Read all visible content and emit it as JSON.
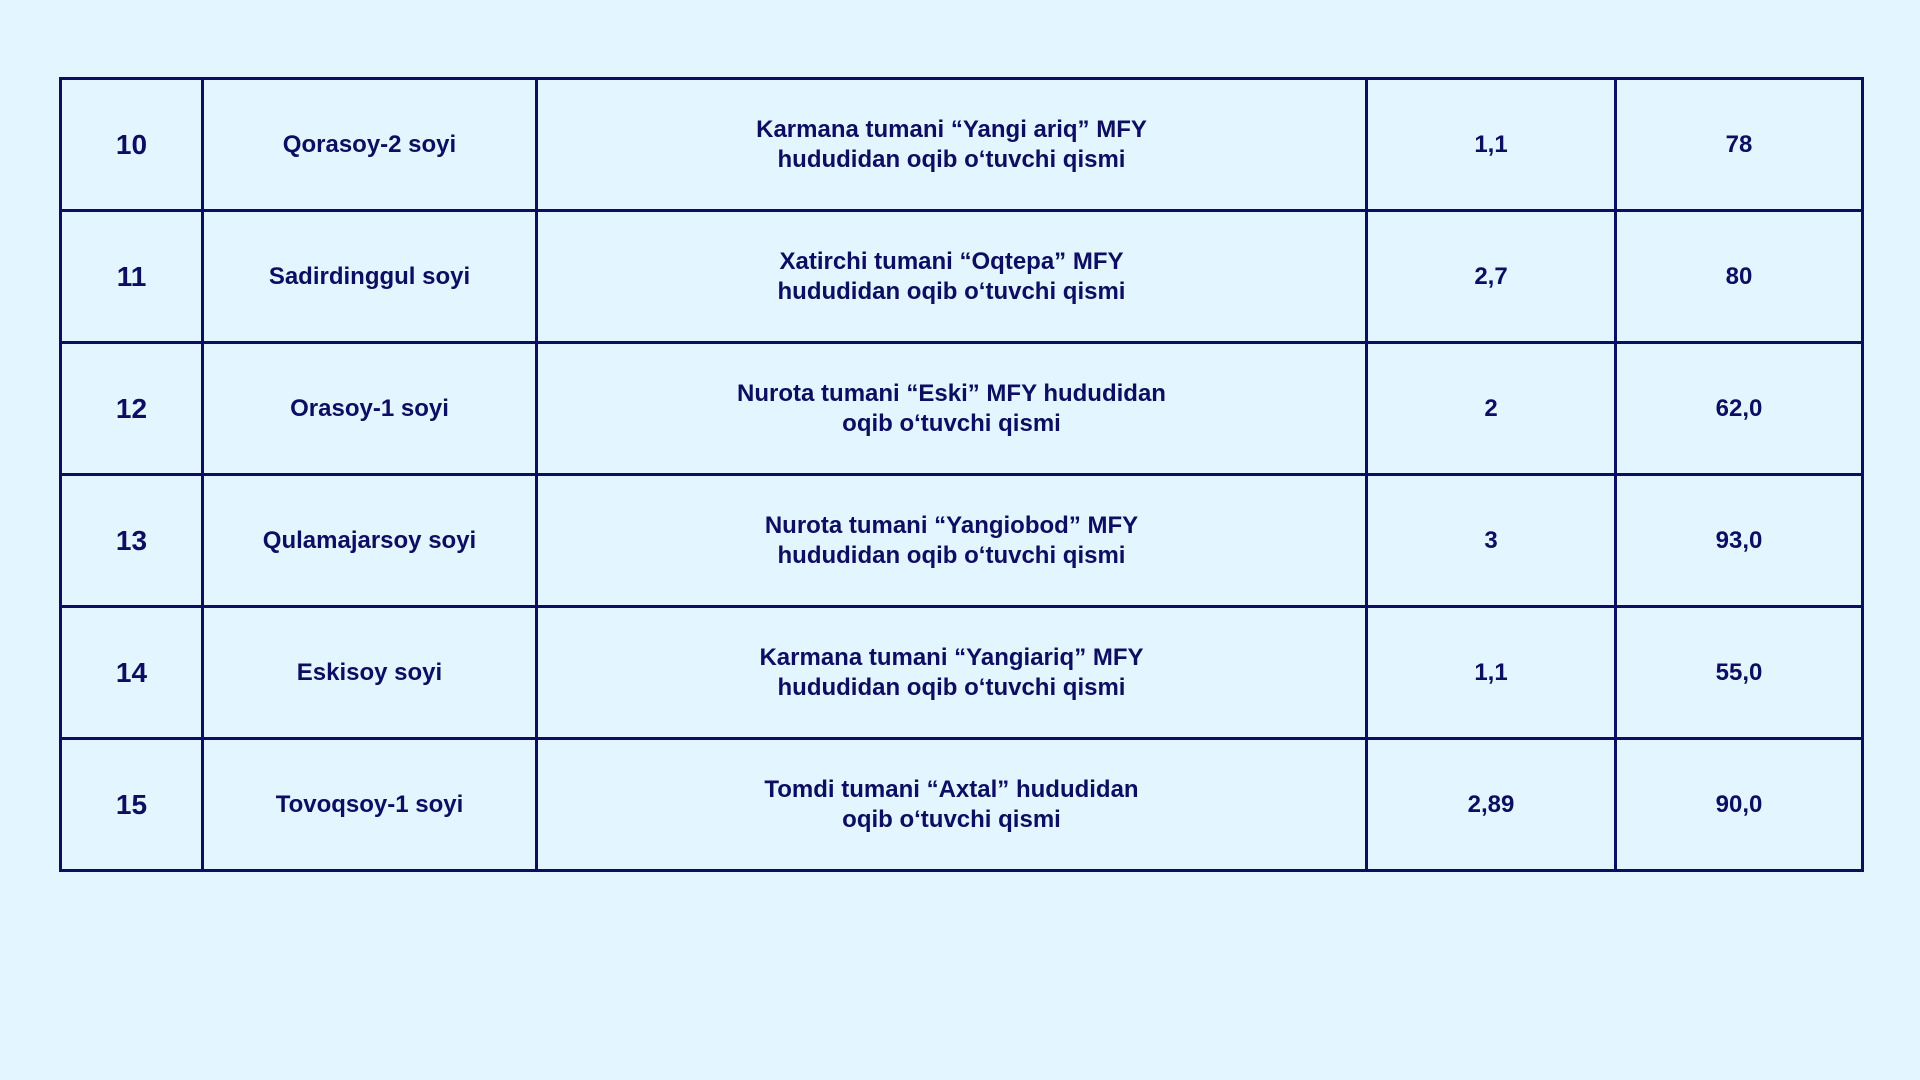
{
  "rows": [
    {
      "no": "10",
      "name": "Qorasoy-2 soyi",
      "location_line1": "Karmana tumani “Yangi ariq” MFY",
      "location_line2": "hududidan oqib o‘tuvchi qismi",
      "length": "1,1",
      "value": "78"
    },
    {
      "no": "11",
      "name": "Sadirdinggul soyi",
      "location_line1": "Xatirchi tumani “Oqtepa” MFY",
      "location_line2": "hududidan oqib o‘tuvchi qismi",
      "length": "2,7",
      "value": "80"
    },
    {
      "no": "12",
      "name": "Orasoy-1 soyi",
      "location_line1": "Nurota tumani “Eski” MFY hududidan",
      "location_line2": "oqib o‘tuvchi qismi",
      "length": "2",
      "value": "62,0"
    },
    {
      "no": "13",
      "name": "Qulamajarsoy soyi",
      "location_line1": "Nurota tumani “Yangiobod” MFY",
      "location_line2": "hududidan oqib o‘tuvchi qismi",
      "length": "3",
      "value": "93,0"
    },
    {
      "no": "14",
      "name": "Eskisoy soyi",
      "location_line1": "Karmana tumani “Yangiariq” MFY",
      "location_line2": "hududidan oqib o‘tuvchi qismi",
      "length": "1,1",
      "value": "55,0"
    },
    {
      "no": "15",
      "name": "Tovoqsoy-1 soyi",
      "location_line1": "Tomdi tumani “Axtal” hududidan",
      "location_line2": "oqib o‘tuvchi qismi",
      "length": "2,89",
      "value": "90,0"
    }
  ]
}
